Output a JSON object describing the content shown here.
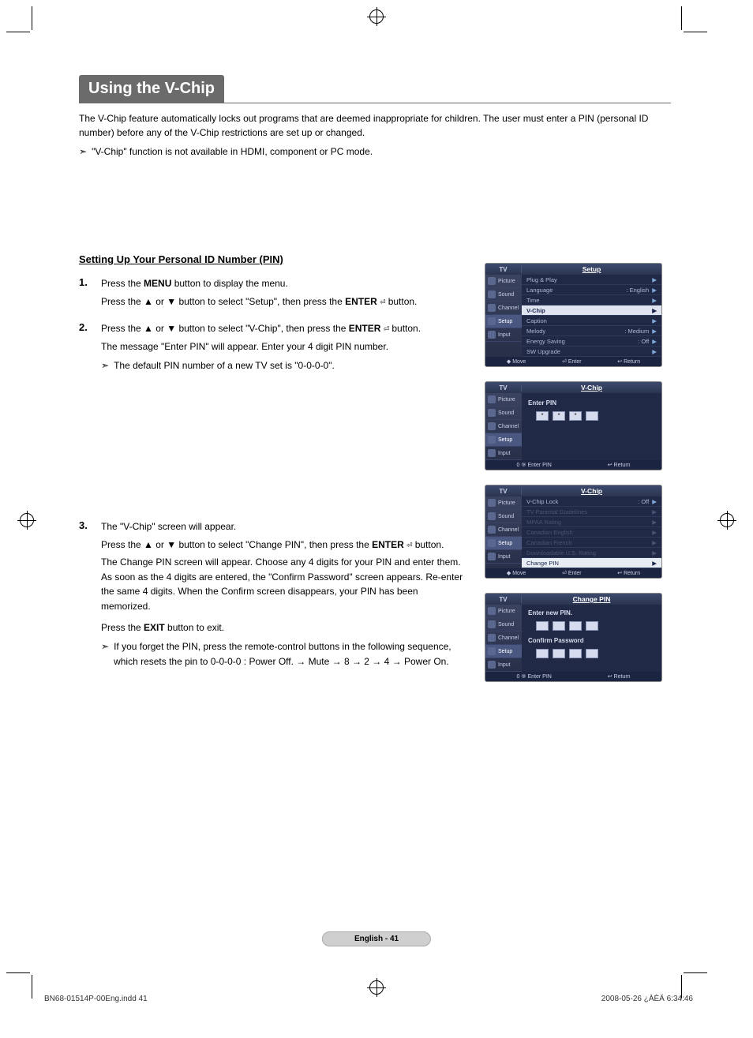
{
  "title": "Using the V-Chip",
  "intro": "The V-Chip feature automatically locks out programs that are deemed inappropriate for children. The user must enter a PIN (personal ID number) before any of the V-Chip restrictions are set up or changed.",
  "intro_note_mark": "➣",
  "intro_note": "\"V-Chip\" function is not available in HDMI, component or PC mode.",
  "section_heading": "Setting Up Your Personal ID Number (PIN)",
  "steps": {
    "s1": {
      "num": "1.",
      "l1_a": "Press the ",
      "l1_b": "MENU",
      "l1_c": " button to display the menu.",
      "l2_a": "Press the ▲ or ▼ button to select \"Setup\", then press the ",
      "l2_b": "ENTER",
      "l2_c": " button."
    },
    "s2": {
      "num": "2.",
      "l1_a": "Press the ▲ or ▼ button to select \"V-Chip\", then press the ",
      "l1_b": "ENTER",
      "l1_c": " button.",
      "l2": "The message \"Enter PIN\" will appear. Enter your 4 digit PIN number.",
      "note_mark": "➣",
      "note": "The default PIN number of a new TV set is \"0-0-0-0\"."
    },
    "s3": {
      "num": "3.",
      "l1": "The \"V-Chip\" screen will appear.",
      "l2_a": "Press the ▲ or ▼ button to select \"Change PIN\", then press the ",
      "l2_b": "ENTER",
      "l2_c": " button.",
      "l3": "The Change PIN screen will appear. Choose any 4 digits for your PIN and enter them. As soon as the 4 digits are entered, the \"Confirm Password\" screen appears. Re-enter the same 4 digits. When the Confirm screen disappears, your PIN has been memorized.",
      "l4_a": "Press the ",
      "l4_b": "EXIT",
      "l4_c": " button to exit.",
      "note_mark": "➣",
      "note": "If you forget the PIN, press the remote-control buttons in the following sequence, which resets the pin to 0-0-0-0 : Power Off. → Mute → 8 → 2 → 4 → Power On."
    }
  },
  "enter_glyph": "⏎",
  "osd": {
    "tv": "TV",
    "sidebar": [
      "Picture",
      "Sound",
      "Channel",
      "Setup",
      "Input"
    ],
    "setup": {
      "title": "Setup",
      "rows": [
        {
          "lbl": "Plug & Play",
          "val": "",
          "cls": ""
        },
        {
          "lbl": "Language",
          "val": ": English",
          "cls": ""
        },
        {
          "lbl": "Time",
          "val": "",
          "cls": ""
        },
        {
          "lbl": "V-Chip",
          "val": "",
          "cls": "hl"
        },
        {
          "lbl": "Caption",
          "val": "",
          "cls": ""
        },
        {
          "lbl": "Melody",
          "val": ": Medium",
          "cls": ""
        },
        {
          "lbl": "Energy Saving",
          "val": ": Off",
          "cls": ""
        },
        {
          "lbl": "SW Upgrade",
          "val": "",
          "cls": ""
        }
      ],
      "foot": [
        "◆ Move",
        "⏎ Enter",
        "↩ Return"
      ]
    },
    "vchip_pin": {
      "title": "V-Chip",
      "prompt": "Enter PIN",
      "foot": [
        "0 ⑨ Enter PIN",
        "↩ Return"
      ]
    },
    "vchip_menu": {
      "title": "V-Chip",
      "rows": [
        {
          "lbl": "V-Chip Lock",
          "val": ": Off",
          "cls": ""
        },
        {
          "lbl": "TV Parental Guidelines",
          "val": "",
          "cls": "dim"
        },
        {
          "lbl": "MPAA Rating",
          "val": "",
          "cls": "dim"
        },
        {
          "lbl": "Canadian English",
          "val": "",
          "cls": "dim"
        },
        {
          "lbl": "Canadian French",
          "val": "",
          "cls": "dim"
        },
        {
          "lbl": "Downloadable U.S. Rating",
          "val": "",
          "cls": "dim"
        },
        {
          "lbl": "Change PIN",
          "val": "",
          "cls": "hlwhite"
        }
      ],
      "foot": [
        "◆ Move",
        "⏎ Enter",
        "↩ Return"
      ]
    },
    "change_pin": {
      "title": "Change PIN",
      "prompt1": "Enter new PIN.",
      "prompt2": "Confirm Password",
      "foot": [
        "0 ⑨ Enter PIN",
        "↩ Return"
      ]
    }
  },
  "page_num": "English - 41",
  "footer_left": "BN68-01514P-00Eng.indd   41",
  "footer_right": "2008-05-26   ¿ÀÈÄ 6:34:46"
}
